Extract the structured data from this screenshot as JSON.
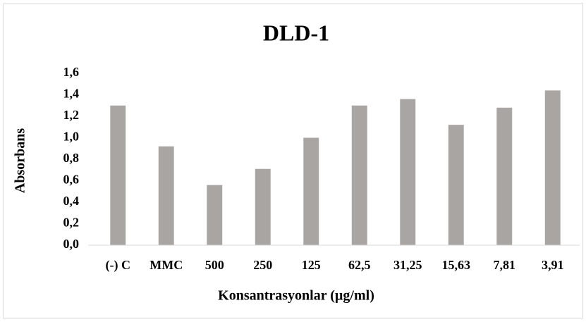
{
  "chart_data": {
    "type": "bar",
    "title": "DLD-1",
    "x_label": "Konsantrasyonlar (µg/ml)",
    "y_label": "Absorbans",
    "categories": [
      "(-) C",
      "MMC",
      "500",
      "250",
      "125",
      "62,5",
      "31,25",
      "15,63",
      "7,81",
      "3,91"
    ],
    "values": [
      1.3,
      0.92,
      0.56,
      0.71,
      1.0,
      1.3,
      1.36,
      1.12,
      1.28,
      1.44
    ],
    "color": "#a9a5a2",
    "ylim": [
      0,
      1.6
    ],
    "yticks": [
      {
        "value": 0,
        "label": "0,0"
      },
      {
        "value": 0.2,
        "label": "0,2"
      },
      {
        "value": 0.4,
        "label": "0,4"
      },
      {
        "value": 0.6,
        "label": "0,6"
      },
      {
        "value": 0.8,
        "label": "0,8"
      },
      {
        "value": 1.0,
        "label": "1,0"
      },
      {
        "value": 1.2,
        "label": "1,2"
      },
      {
        "value": 1.4,
        "label": "1,4"
      },
      {
        "value": 1.6,
        "label": "1,6"
      }
    ],
    "grid": false
  }
}
